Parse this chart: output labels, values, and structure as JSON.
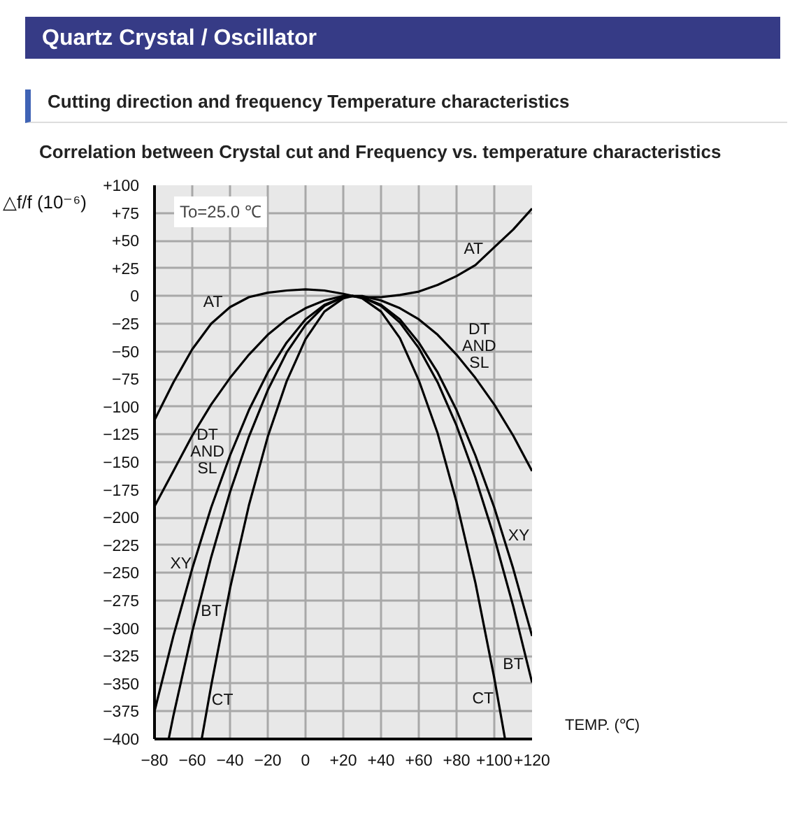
{
  "chart_data": {
    "type": "line",
    "title": "Quartz Crystal / Oscillator",
    "subtitle": [
      "Cutting direction and frequency Temperature characteristics",
      "Correlation between Crystal cut and Frequency vs. temperature characteristics"
    ],
    "xlabel": "TEMP. (℃)",
    "ylabel": "△f/f (10⁻⁶)",
    "xlim": [
      -80,
      120
    ],
    "ylim": [
      -400,
      100
    ],
    "xticks": [
      -80,
      -60,
      -40,
      -20,
      0,
      {
        "value": 20,
        "label": "+20"
      },
      {
        "value": 40,
        "label": "+40"
      },
      {
        "value": 60,
        "label": "+60"
      },
      {
        "value": 80,
        "label": "+80"
      },
      {
        "value": 100,
        "label": "+100"
      },
      {
        "value": 120,
        "label": "+120"
      }
    ],
    "yticks": [
      {
        "value": 100,
        "label": "+100"
      },
      {
        "value": 75,
        "label": "+75"
      },
      {
        "value": 50,
        "label": "+50"
      },
      {
        "value": 25,
        "label": "+25"
      },
      0,
      -25,
      -50,
      -75,
      -100,
      -125,
      -150,
      -175,
      -200,
      -225,
      -250,
      -275,
      -300,
      -325,
      -350,
      -375,
      -400
    ],
    "grid": true,
    "series": [
      {
        "name": "AT",
        "color": "#000000",
        "x": [
          -80,
          -70,
          -60,
          -50,
          -40,
          -30,
          -20,
          -10,
          0,
          10,
          20,
          25,
          30,
          40,
          50,
          60,
          70,
          80,
          90,
          100,
          110,
          120
        ],
        "values": [
          -112,
          -78,
          -48,
          -25,
          -10,
          -1,
          3,
          5,
          6,
          5,
          2,
          0,
          -1,
          -1,
          1,
          4,
          10,
          18,
          28,
          44,
          60,
          79
        ]
      },
      {
        "name": "DT\nAND\nSL",
        "color": "#000000",
        "x": [
          -80,
          -70,
          -60,
          -50,
          -40,
          -30,
          -20,
          -10,
          0,
          10,
          20,
          25,
          30,
          40,
          50,
          60,
          70,
          80,
          90,
          100,
          110,
          120
        ],
        "values": [
          -190,
          -158,
          -126,
          -98,
          -74,
          -53,
          -35,
          -21,
          -11,
          -4,
          0,
          0,
          0,
          -4,
          -11,
          -21,
          -35,
          -53,
          -74,
          -98,
          -126,
          -158
        ]
      },
      {
        "name": "XY",
        "color": "#000000",
        "x": [
          -80,
          -70,
          -60,
          -50,
          -40,
          -30,
          -20,
          -10,
          0,
          10,
          20,
          25,
          30,
          40,
          50,
          60,
          70,
          80,
          90,
          100,
          110,
          120
        ],
        "values": [
          -375,
          -307,
          -246,
          -191,
          -144,
          -103,
          -69,
          -42,
          -21,
          -8,
          -1,
          0,
          -1,
          -8,
          -21,
          -42,
          -69,
          -103,
          -144,
          -191,
          -246,
          -307
        ]
      },
      {
        "name": "BT",
        "color": "#000000",
        "x": [
          -72.5,
          -70,
          -60,
          -50,
          -40,
          -30,
          -20,
          -10,
          0,
          10,
          20,
          25,
          30,
          40,
          50,
          60,
          70,
          80,
          90,
          100,
          110,
          120
        ],
        "values": [
          -400,
          -379,
          -303,
          -236,
          -177,
          -127,
          -85,
          -51,
          -26,
          -9,
          -1,
          0,
          -1,
          -9,
          -24,
          -47,
          -78,
          -117,
          -164,
          -218,
          -280,
          -349
        ]
      },
      {
        "name": "CT",
        "color": "#000000",
        "x": [
          -55,
          -50,
          -40,
          -30,
          -20,
          -10,
          0,
          10,
          20,
          25,
          30,
          40,
          50,
          60,
          70,
          80,
          90,
          100,
          105.7
        ],
        "values": [
          -400,
          -352,
          -264,
          -189,
          -127,
          -77,
          -39,
          -14,
          -2,
          0,
          -2,
          -14,
          -38,
          -76,
          -124,
          -186,
          -259,
          -345,
          -400
        ]
      }
    ],
    "annotations": [
      "To=25.0 ℃"
    ]
  }
}
